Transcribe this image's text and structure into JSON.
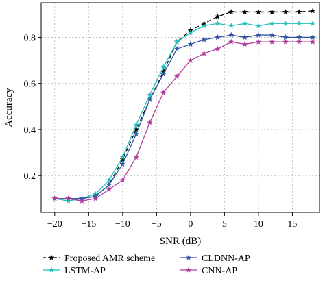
{
  "chart_data": {
    "type": "line",
    "xlabel": "SNR (dB)",
    "ylabel": "Accuracy",
    "xlim": [
      -22,
      19
    ],
    "ylim": [
      0.04,
      0.95
    ],
    "x_ticks": [
      -20,
      -15,
      -10,
      -5,
      0,
      5,
      10,
      15
    ],
    "y_ticks": [
      0.2,
      0.4,
      0.6,
      0.8
    ],
    "x_tick_labels": [
      "−20",
      "−15",
      "−10",
      "−5",
      "0",
      "5",
      "10",
      "15"
    ],
    "y_tick_labels": [
      "0.2",
      "0.4",
      "0.6",
      "0.8"
    ],
    "grid": true,
    "legend_position": "below",
    "x": [
      -20,
      -18,
      -16,
      -14,
      -12,
      -10,
      -8,
      -6,
      -4,
      -2,
      0,
      2,
      4,
      6,
      8,
      10,
      12,
      14,
      16,
      18
    ],
    "series": [
      {
        "name": "Proposed AMR scheme",
        "color": "#000000",
        "line_style": "dashed",
        "marker": "star",
        "values": [
          0.1,
          0.1,
          0.1,
          0.11,
          0.16,
          0.27,
          0.4,
          0.53,
          0.65,
          0.78,
          0.83,
          0.86,
          0.89,
          0.91,
          0.91,
          0.91,
          0.91,
          0.91,
          0.91,
          0.915
        ]
      },
      {
        "name": "LSTM-AP",
        "color": "#1fbfbf",
        "line_style": "solid",
        "marker": "star",
        "values": [
          0.1,
          0.09,
          0.1,
          0.12,
          0.18,
          0.28,
          0.42,
          0.55,
          0.67,
          0.78,
          0.82,
          0.85,
          0.86,
          0.85,
          0.86,
          0.85,
          0.86,
          0.86,
          0.86,
          0.86
        ]
      },
      {
        "name": "CLDNN-AP",
        "color": "#3355a5",
        "line_style": "solid",
        "marker": "star",
        "values": [
          0.1,
          0.1,
          0.1,
          0.11,
          0.16,
          0.25,
          0.38,
          0.53,
          0.64,
          0.75,
          0.77,
          0.79,
          0.8,
          0.81,
          0.8,
          0.81,
          0.81,
          0.8,
          0.8,
          0.8
        ]
      },
      {
        "name": "CNN-AP",
        "color": "#b03c9c",
        "line_style": "solid",
        "marker": "star",
        "values": [
          0.1,
          0.1,
          0.09,
          0.1,
          0.14,
          0.18,
          0.28,
          0.43,
          0.56,
          0.63,
          0.7,
          0.73,
          0.75,
          0.78,
          0.77,
          0.78,
          0.78,
          0.78,
          0.78,
          0.78
        ]
      }
    ]
  }
}
